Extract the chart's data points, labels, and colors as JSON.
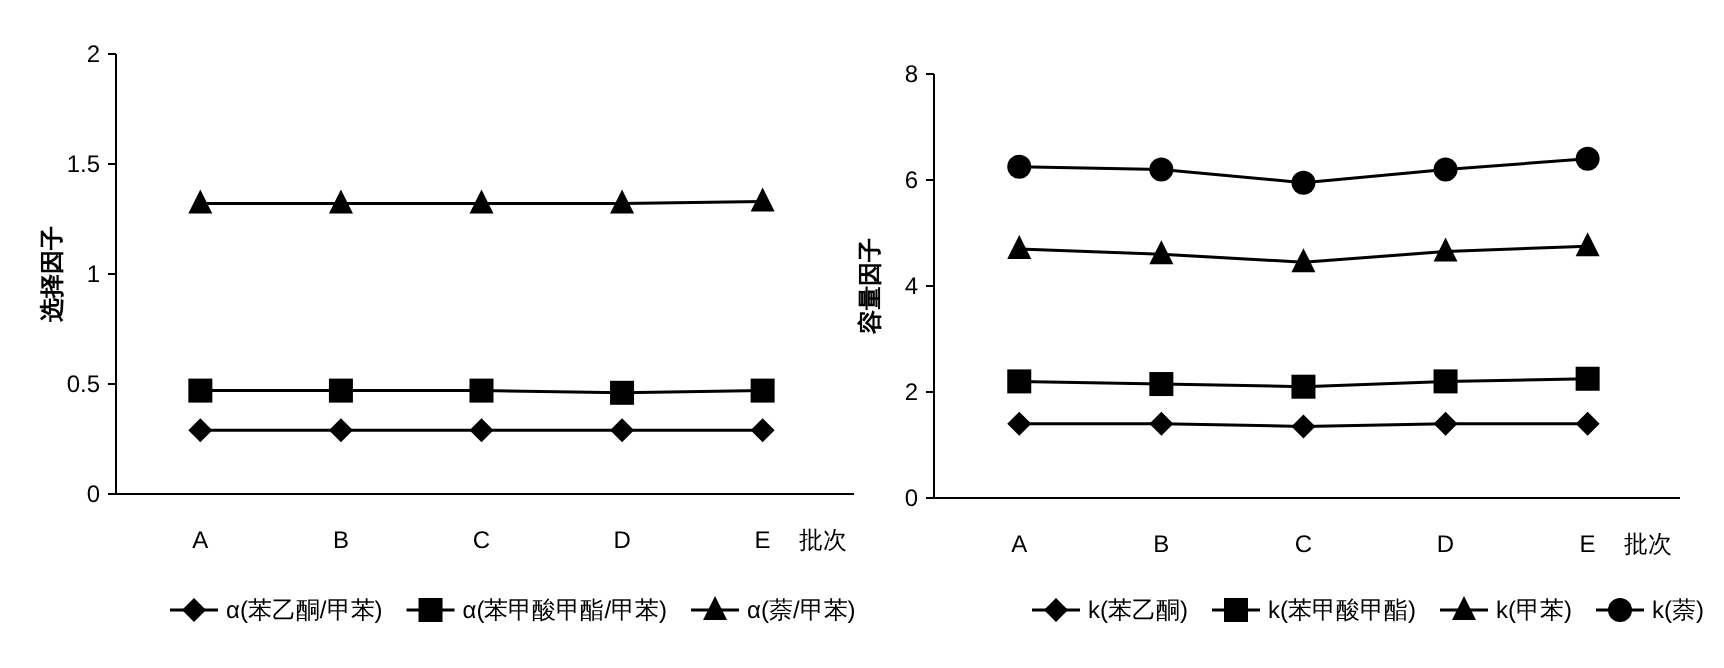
{
  "chart_data": [
    {
      "type": "line",
      "ylabel": "选择因子",
      "xlabel": "批次",
      "categories": [
        "A",
        "B",
        "C",
        "D",
        "E"
      ],
      "ylim": [
        0,
        2
      ],
      "yticks": [
        0,
        0.5,
        1,
        1.5,
        2
      ],
      "grid": false,
      "legend": "bottom",
      "series": [
        {
          "name": "α(苯乙酮/甲苯)",
          "color": "#000000",
          "marker": "diamond",
          "values": [
            0.29,
            0.29,
            0.29,
            0.29,
            0.29
          ]
        },
        {
          "name": "α(苯甲酸甲酯/甲苯)",
          "color": "#000000",
          "marker": "square",
          "values": [
            0.47,
            0.47,
            0.47,
            0.46,
            0.47
          ]
        },
        {
          "name": "α(萘/甲苯)",
          "color": "#000000",
          "marker": "triangle",
          "values": [
            1.32,
            1.32,
            1.32,
            1.32,
            1.33
          ]
        }
      ]
    },
    {
      "type": "line",
      "ylabel": "容量因子",
      "xlabel": "批次",
      "categories": [
        "A",
        "B",
        "C",
        "D",
        "E"
      ],
      "ylim": [
        0,
        8
      ],
      "yticks": [
        0,
        2,
        4,
        6,
        8
      ],
      "grid": false,
      "legend": "bottom",
      "series": [
        {
          "name": "k(苯乙酮)",
          "color": "#000000",
          "marker": "diamond",
          "values": [
            1.4,
            1.4,
            1.35,
            1.4,
            1.4
          ]
        },
        {
          "name": "k(苯甲酸甲酯)",
          "color": "#000000",
          "marker": "square",
          "values": [
            2.2,
            2.15,
            2.1,
            2.2,
            2.25
          ]
        },
        {
          "name": "k(甲苯)",
          "color": "#000000",
          "marker": "triangle",
          "values": [
            4.7,
            4.6,
            4.45,
            4.65,
            4.75
          ]
        },
        {
          "name": "k(萘)",
          "color": "#000000",
          "marker": "circle",
          "values": [
            6.25,
            6.2,
            5.95,
            6.2,
            6.4
          ]
        }
      ]
    }
  ]
}
